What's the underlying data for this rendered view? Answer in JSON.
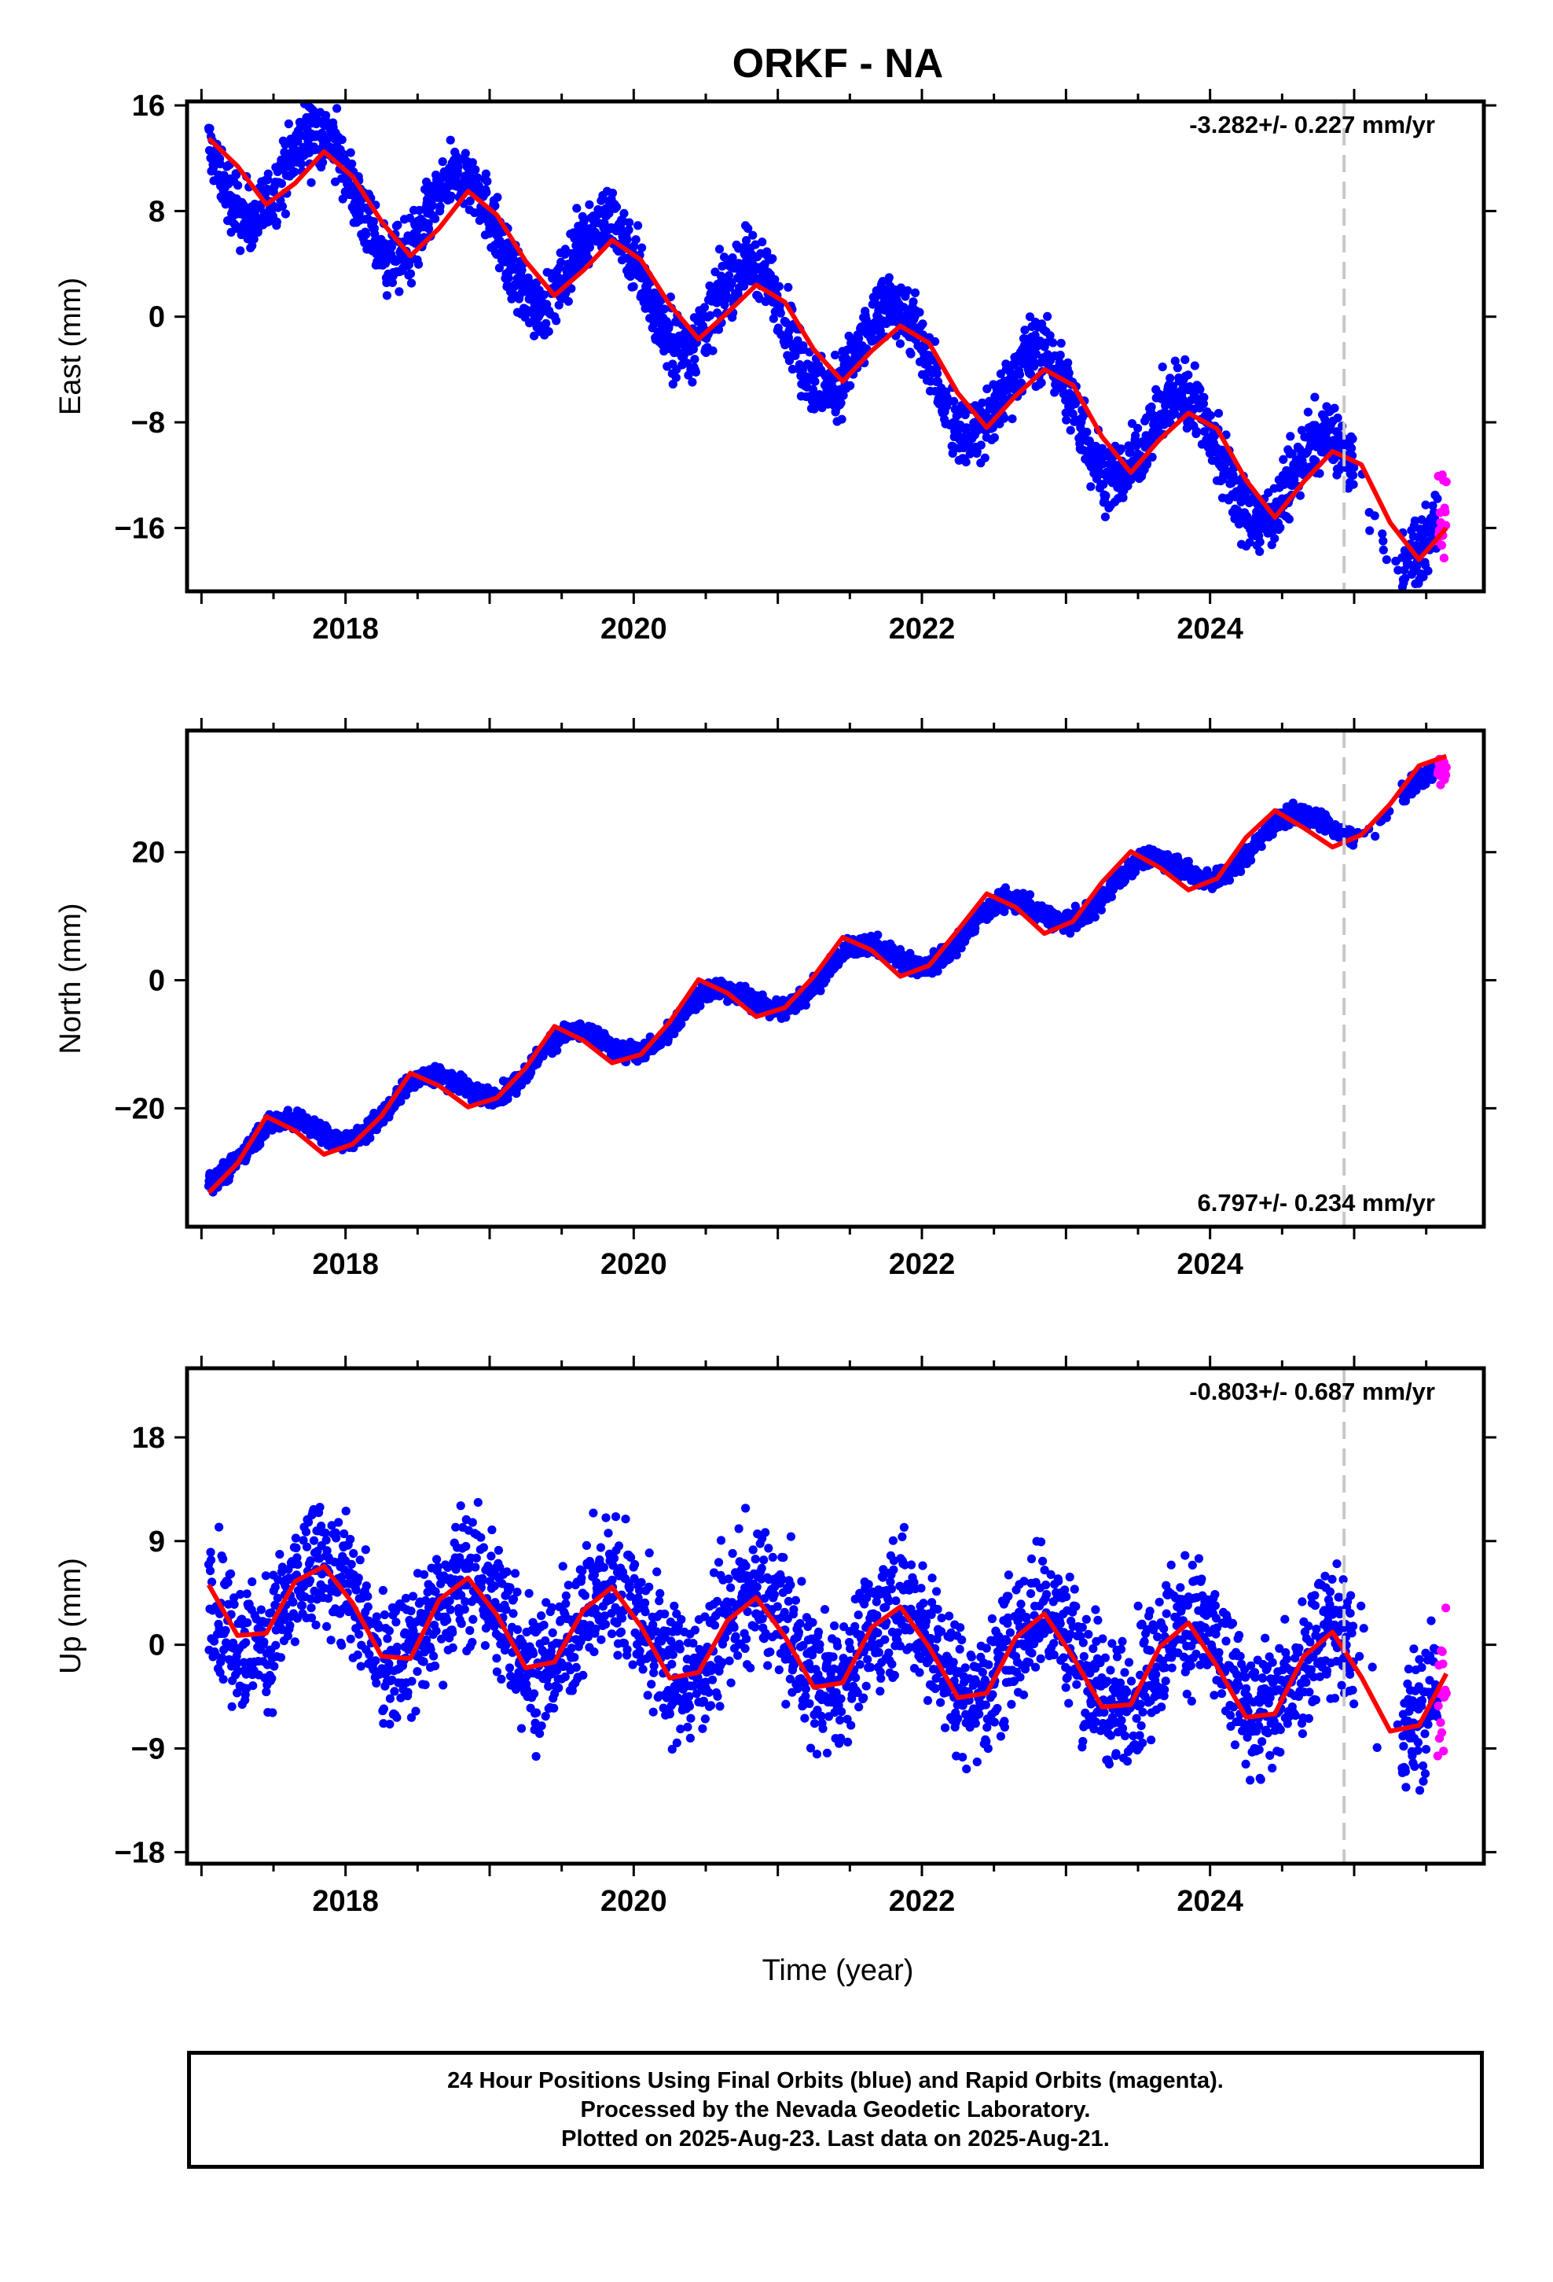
{
  "chart_data": {
    "title": "ORKF - NA",
    "type": "scatter",
    "xlabel": "Time (year)",
    "xlim": [
      2016.9,
      2025.9
    ],
    "x_ticks": [
      "2018",
      "2020",
      "2022",
      "2024"
    ],
    "x_tick_values": [
      2018,
      2020,
      2022,
      2024
    ],
    "x_minor_step": 0.5,
    "vertical_marker_x": 2024.93,
    "rapid_orbits_start": 2025.58,
    "last_data": 2025.64,
    "colors": {
      "final": "#0000ff",
      "rapid": "#ff00ff",
      "fit": "#ff0000",
      "marker": "#c8c8c8"
    },
    "panels": [
      {
        "name": "East",
        "ylabel": "East (mm)",
        "ylim": [
          -20.8,
          16.3
        ],
        "y_ticks": [
          "16",
          "8",
          "0",
          "−8",
          "−16"
        ],
        "y_tick_values": [
          16,
          8,
          0,
          -8,
          -16
        ],
        "rate_label": "-3.282+/- 0.227 mm/yr",
        "rate_position": "top-right",
        "fit": {
          "t0": 2021.3,
          "intercept": -1.5,
          "slope": -3.282,
          "annual_amplitude": 4.0,
          "peak_year_fraction": 0.82
        },
        "fit_x": [
          2017.05,
          2017.25,
          2017.45,
          2017.65,
          2017.85,
          2018.05,
          2018.25,
          2018.45,
          2018.65,
          2018.85,
          2019.05,
          2019.25,
          2019.45,
          2019.65,
          2019.85,
          2020.05,
          2020.25,
          2020.45,
          2020.65,
          2020.85,
          2021.05,
          2021.25,
          2021.45,
          2021.65,
          2021.85,
          2022.05,
          2022.25,
          2022.45,
          2022.65,
          2022.85,
          2023.05,
          2023.25,
          2023.45,
          2023.65,
          2023.85,
          2024.05,
          2024.25,
          2024.45,
          2024.65,
          2024.85,
          2025.05,
          2025.25,
          2025.45,
          2025.64
        ],
        "fit_y": [
          13.5,
          11.4,
          8.5,
          10.1,
          12.5,
          10.6,
          7.2,
          4.6,
          6.7,
          9.5,
          7.7,
          4.2,
          1.6,
          3.5,
          5.8,
          4.3,
          0.9,
          -1.7,
          0.3,
          2.4,
          1.1,
          -2.5,
          -4.9,
          -2.6,
          -0.7,
          -2.0,
          -5.8,
          -8.4,
          -6.0,
          -4.0,
          -5.2,
          -9.1,
          -11.8,
          -9.3,
          -7.3,
          -8.5,
          -12.4,
          -15.2,
          -12.5,
          -10.2,
          -11.2,
          -15.6,
          -18.4,
          -16.0
        ],
        "scatter_noise": 1.8
      },
      {
        "name": "North",
        "ylabel": "North (mm)",
        "ylim": [
          -38.5,
          39.0
        ],
        "y_ticks": [
          "20",
          "0",
          "−20"
        ],
        "y_tick_values": [
          20,
          0,
          -20
        ],
        "rate_label": "6.797+/- 0.234 mm/yr",
        "rate_position": "bottom-right",
        "fit": {
          "t0": 2021.3,
          "intercept": 0.5,
          "slope": 6.797,
          "annual_amplitude": 3.2,
          "peak_year_fraction": 0.55
        },
        "fit_x": [
          2017.05,
          2017.25,
          2017.45,
          2017.65,
          2017.85,
          2018.05,
          2018.25,
          2018.45,
          2018.65,
          2018.85,
          2019.05,
          2019.25,
          2019.45,
          2019.65,
          2019.85,
          2020.05,
          2020.25,
          2020.45,
          2020.65,
          2020.85,
          2021.05,
          2021.25,
          2021.45,
          2021.65,
          2021.85,
          2022.05,
          2022.25,
          2022.45,
          2022.65,
          2022.85,
          2023.05,
          2023.25,
          2023.45,
          2023.65,
          2023.85,
          2024.05,
          2024.25,
          2024.45,
          2024.65,
          2024.85,
          2025.05,
          2025.25,
          2025.45,
          2025.64
        ],
        "fit_y": [
          -33.2,
          -28.6,
          -21.3,
          -23.5,
          -27.2,
          -25.6,
          -21.2,
          -14.5,
          -16.5,
          -19.8,
          -18.4,
          -13.7,
          -7.2,
          -9.4,
          -12.9,
          -11.6,
          -6.5,
          0.1,
          -2.0,
          -5.7,
          -4.3,
          0.6,
          6.7,
          4.7,
          0.6,
          2.3,
          7.8,
          13.5,
          11.4,
          7.3,
          9.2,
          15.3,
          20.1,
          17.6,
          14.1,
          15.9,
          22.3,
          26.5,
          23.8,
          20.8,
          22.7,
          27.5,
          33.5,
          35.0
        ],
        "scatter_noise": 1.1
      },
      {
        "name": "Up",
        "ylabel": "Up (mm)",
        "ylim": [
          -19.0,
          24.0
        ],
        "y_ticks": [
          "18",
          "9",
          "0",
          "−9",
          "−18"
        ],
        "y_tick_values": [
          18,
          9,
          0,
          -9,
          -18
        ],
        "rate_label": "-0.803+/- 0.687 mm/yr",
        "rate_position": "top-right",
        "fit": {
          "t0": 2021.3,
          "intercept": 0.3,
          "slope": -0.803,
          "annual_amplitude": 3.8,
          "peak_year_fraction": 0.85
        },
        "fit_x": [
          2017.05,
          2017.25,
          2017.45,
          2017.65,
          2017.85,
          2018.05,
          2018.25,
          2018.45,
          2018.65,
          2018.85,
          2019.05,
          2019.25,
          2019.45,
          2019.65,
          2019.85,
          2020.05,
          2020.25,
          2020.45,
          2020.65,
          2020.85,
          2021.05,
          2021.25,
          2021.45,
          2021.65,
          2021.85,
          2022.05,
          2022.25,
          2022.45,
          2022.65,
          2022.85,
          2023.05,
          2023.25,
          2023.45,
          2023.65,
          2023.85,
          2024.05,
          2024.25,
          2024.45,
          2024.65,
          2024.85,
          2025.05,
          2025.25,
          2025.45,
          2025.64
        ],
        "fit_y": [
          5.2,
          0.8,
          1.0,
          5.5,
          6.8,
          3.6,
          -1.0,
          -1.2,
          3.9,
          5.8,
          2.6,
          -2.0,
          -1.5,
          3.0,
          5.0,
          1.6,
          -2.9,
          -2.4,
          2.1,
          4.1,
          0.7,
          -3.7,
          -3.3,
          1.5,
          3.3,
          -0.2,
          -4.6,
          -4.2,
          0.6,
          2.7,
          -1.1,
          -5.4,
          -5.2,
          -0.2,
          1.9,
          -1.9,
          -6.3,
          -6.0,
          -1.0,
          1.1,
          -2.8,
          -7.5,
          -7.0,
          -2.5
        ],
        "scatter_noise": 4.2
      }
    ],
    "footer": [
      "24 Hour Positions Using Final Orbits (blue) and Rapid Orbits (magenta).",
      "Processed by the Nevada Geodetic Laboratory.",
      "Plotted on 2025-Aug-23. Last data on 2025-Aug-21."
    ]
  }
}
